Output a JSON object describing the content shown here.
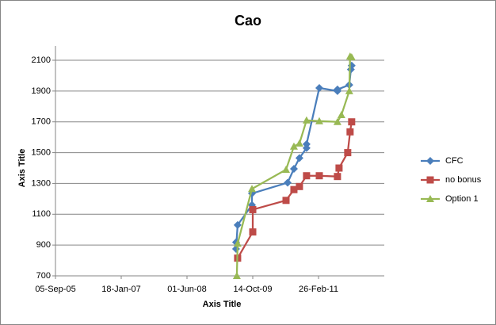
{
  "chart_data": {
    "type": "line",
    "title": "Cao",
    "x_label": "Axis Title",
    "y_label": "Axis Title",
    "xlim": [
      "2005-09-05",
      "2012-07-10"
    ],
    "xticks": [
      {
        "value": "2005-09-05",
        "label": "05-Sep-05"
      },
      {
        "value": "2007-01-18",
        "label": "18-Jan-07"
      },
      {
        "value": "2008-06-01",
        "label": "01-Jun-08"
      },
      {
        "value": "2009-10-14",
        "label": "14-Oct-09"
      },
      {
        "value": "2011-02-26",
        "label": "26-Feb-11"
      }
    ],
    "ylim": [
      700,
      2100
    ],
    "yticks": [
      700,
      900,
      1100,
      1300,
      1500,
      1700,
      1900,
      2100
    ],
    "grid": true,
    "legend": "right",
    "series": [
      {
        "name": "CFC",
        "color": "#4a7ebb",
        "marker": "diamond",
        "x": [
          "2009-06-09",
          "2009-06-09",
          "2009-06-21",
          "2009-10-08",
          "2009-10-08",
          "2010-07-06",
          "2010-08-23",
          "2010-10-04",
          "2010-11-27",
          "2010-11-27",
          "2011-03-04",
          "2011-07-20",
          "2011-07-20",
          "2011-10-18",
          "2011-10-30",
          "2011-11-05"
        ],
        "values": [
          918,
          875,
          1030,
          1160,
          1235,
          1305,
          1395,
          1465,
          1530,
          1555,
          1920,
          1900,
          1910,
          1940,
          2040,
          2065
        ]
      },
      {
        "name": "no bonus",
        "color": "#be4b48",
        "marker": "square",
        "x": [
          "2009-06-21",
          "2009-10-14",
          "2009-10-14",
          "2010-06-24",
          "2010-08-23",
          "2010-10-04",
          "2010-11-27",
          "2011-03-04",
          "2011-07-20",
          "2011-08-01",
          "2011-10-06",
          "2011-10-24",
          "2011-11-05"
        ],
        "values": [
          815,
          985,
          1130,
          1190,
          1260,
          1280,
          1350,
          1350,
          1345,
          1400,
          1500,
          1635,
          1700
        ]
      },
      {
        "name": "Option 1",
        "color": "#98b954",
        "marker": "triangle",
        "x": [
          "2009-06-15",
          "2009-06-21",
          "2009-10-08",
          "2010-06-24",
          "2010-08-23",
          "2010-10-04",
          "2010-11-27",
          "2011-03-04",
          "2011-07-20",
          "2011-08-19",
          "2011-10-18",
          "2011-10-24",
          "2011-11-05"
        ],
        "values": [
          700,
          910,
          1265,
          1390,
          1540,
          1560,
          1710,
          1705,
          1700,
          1745,
          1900,
          2125,
          2120
        ]
      }
    ]
  }
}
